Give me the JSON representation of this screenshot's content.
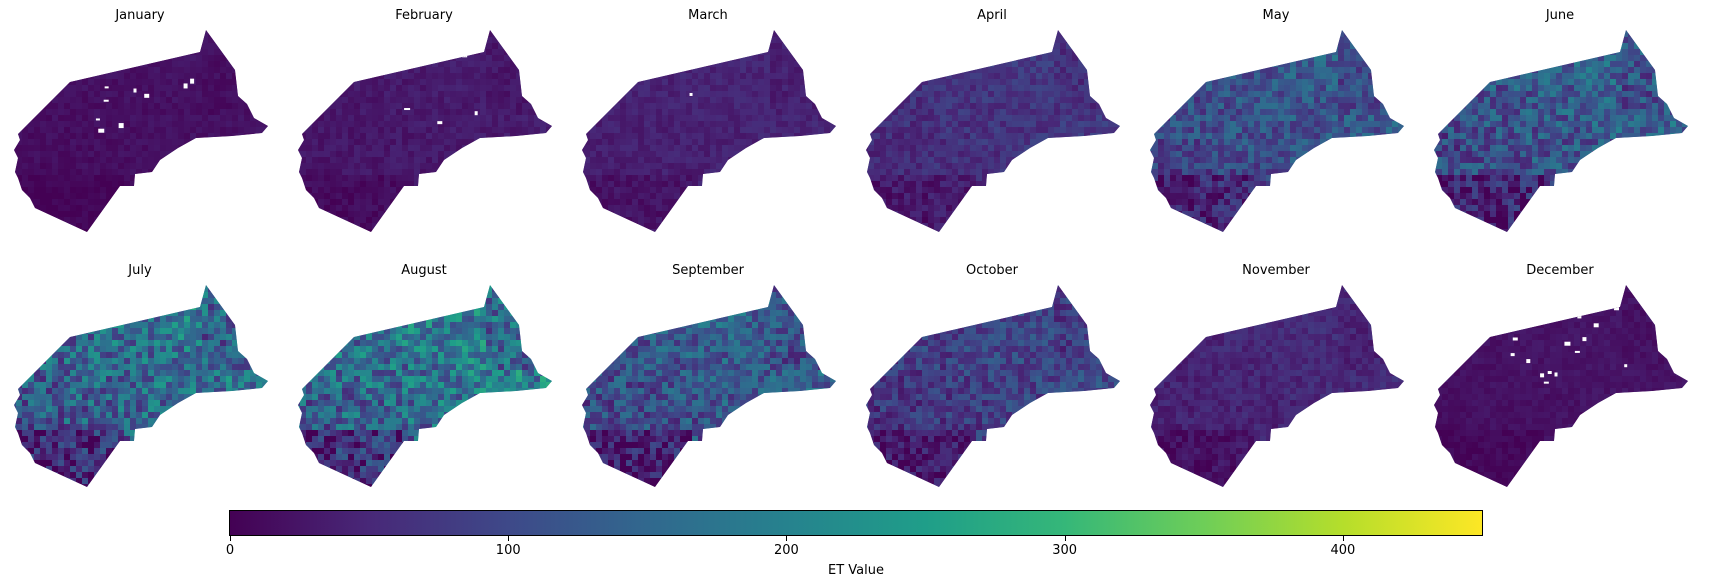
{
  "colormap": {
    "name": "viridis",
    "stops": [
      "#440154",
      "#482878",
      "#3e4989",
      "#31688e",
      "#26828e",
      "#1f9e89",
      "#35b779",
      "#6ece58",
      "#b5de2b",
      "#fde725"
    ]
  },
  "colorbar": {
    "label": "ET Value",
    "min": 0,
    "max": 450,
    "ticks": [
      0,
      100,
      200,
      300,
      400
    ],
    "tick_labels": [
      "0",
      "100",
      "200",
      "300",
      "400"
    ]
  },
  "panels": [
    {
      "month": "January",
      "mean": 18,
      "spread": 14,
      "nodata_patches": 9
    },
    {
      "month": "February",
      "mean": 30,
      "spread": 18,
      "nodata_patches": 5
    },
    {
      "month": "March",
      "mean": 42,
      "spread": 20,
      "nodata_patches": 1
    },
    {
      "month": "April",
      "mean": 65,
      "spread": 35,
      "nodata_patches": 0
    },
    {
      "month": "May",
      "mean": 110,
      "spread": 70,
      "nodata_patches": 0
    },
    {
      "month": "June",
      "mean": 120,
      "spread": 85,
      "nodata_patches": 0
    },
    {
      "month": "July",
      "mean": 150,
      "spread": 110,
      "nodata_patches": 0
    },
    {
      "month": "August",
      "mean": 165,
      "spread": 115,
      "nodata_patches": 0
    },
    {
      "month": "September",
      "mean": 120,
      "spread": 85,
      "nodata_patches": 0
    },
    {
      "month": "October",
      "mean": 85,
      "spread": 60,
      "nodata_patches": 0
    },
    {
      "month": "November",
      "mean": 48,
      "spread": 28,
      "nodata_patches": 0
    },
    {
      "month": "December",
      "mean": 22,
      "spread": 14,
      "nodata_patches": 14
    }
  ]
}
